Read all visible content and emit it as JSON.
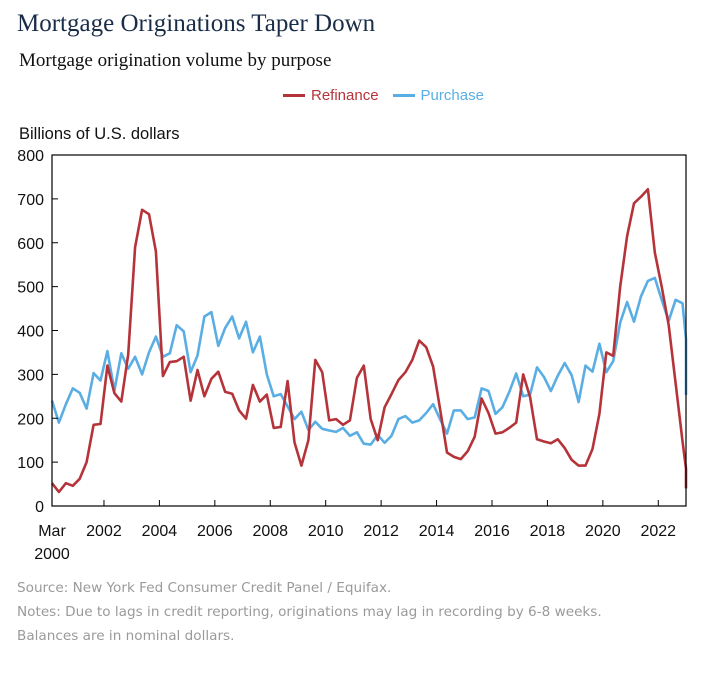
{
  "header": {
    "title": "Mortgage Originations Taper Down",
    "subtitle": "Mortgage origination volume by purpose"
  },
  "footnotes": {
    "source": "Source: New York Fed Consumer Credit Panel / Equifax.",
    "notes": "Notes: Due to lags in credit reporting, originations may lag in recording by 6-8 weeks.",
    "balances": "Balances are in nominal dollars."
  },
  "colors": {
    "refinance": "#b5343a",
    "purchase": "#5aaee3",
    "axis": "#000000"
  },
  "chart_data": {
    "type": "line",
    "title": "Mortgage origination volume by purpose",
    "ylabel": "Billions of U.S. dollars",
    "xlabel": "",
    "ylim": [
      0,
      800
    ],
    "xlim": [
      2000.125,
      2023.0
    ],
    "grid": false,
    "legend_position": "top-center",
    "yticks": [
      0,
      100,
      200,
      300,
      400,
      500,
      600,
      700,
      800
    ],
    "xticks": [
      {
        "value": 2000.125,
        "label": "Mar",
        "sublabel": "2000"
      },
      {
        "value": 2002,
        "label": "2002"
      },
      {
        "value": 2004,
        "label": "2004"
      },
      {
        "value": 2006,
        "label": "2006"
      },
      {
        "value": 2008,
        "label": "2008"
      },
      {
        "value": 2010,
        "label": "2010"
      },
      {
        "value": 2012,
        "label": "2012"
      },
      {
        "value": 2014,
        "label": "2014"
      },
      {
        "value": 2016,
        "label": "2016"
      },
      {
        "value": 2018,
        "label": "2018"
      },
      {
        "value": 2020,
        "label": "2020"
      },
      {
        "value": 2022,
        "label": "2022"
      }
    ],
    "x_start": 2000.125,
    "x_step": 0.25,
    "series": [
      {
        "name": "Refinance",
        "color": "#b5343a",
        "values": [
          52,
          32,
          52,
          46,
          62,
          100,
          185,
          187,
          320,
          257,
          238,
          345,
          590,
          675,
          665,
          580,
          296,
          328,
          330,
          340,
          240,
          310,
          250,
          290,
          306,
          260,
          256,
          218,
          199,
          276,
          238,
          254,
          178,
          180,
          285,
          145,
          92,
          150,
          333,
          305,
          195,
          198,
          185,
          195,
          292,
          320,
          198,
          150,
          225,
          255,
          287,
          305,
          333,
          377,
          362,
          318,
          222,
          122,
          112,
          107,
          125,
          158,
          245,
          212,
          165,
          168,
          178,
          190,
          300,
          248,
          152,
          147,
          143,
          152,
          132,
          105,
          92,
          92,
          130,
          210,
          350,
          342,
          500,
          615,
          690,
          705,
          722,
          578,
          500,
          412,
          280,
          148,
          85,
          40
        ]
      },
      {
        "name": "Purchase",
        "color": "#5aaee3",
        "values": [
          240,
          190,
          232,
          268,
          258,
          222,
          303,
          286,
          353,
          263,
          348,
          313,
          340,
          300,
          350,
          386,
          340,
          348,
          412,
          398,
          305,
          343,
          432,
          442,
          365,
          406,
          432,
          382,
          420,
          350,
          386,
          300,
          250,
          255,
          227,
          198,
          215,
          173,
          192,
          176,
          172,
          169,
          178,
          160,
          168,
          142,
          140,
          162,
          144,
          160,
          198,
          205,
          190,
          195,
          212,
          232,
          198,
          165,
          218,
          218,
          198,
          202,
          268,
          262,
          210,
          225,
          260,
          302,
          250,
          254,
          316,
          294,
          262,
          297,
          326,
          298,
          237,
          320,
          306,
          370,
          305,
          330,
          418,
          465,
          420,
          478,
          513,
          520,
          470,
          422,
          470,
          462,
          380,
          253
        ]
      }
    ]
  }
}
